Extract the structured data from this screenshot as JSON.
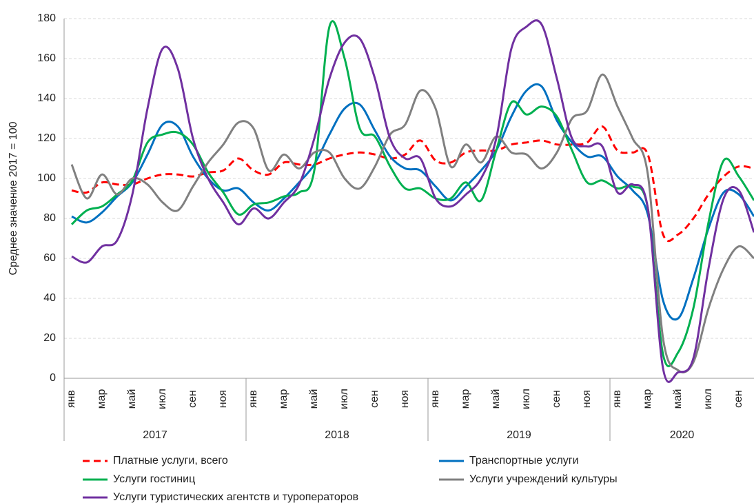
{
  "chart_data": {
    "type": "line",
    "y_label": "Среднее значение 2017 = 100",
    "categories": [
      "янв",
      null,
      "мар",
      null,
      "май",
      null,
      "июл",
      null,
      "сен",
      null,
      "ноя",
      null,
      "янв",
      null,
      "мар",
      null,
      "май",
      null,
      "июл",
      null,
      "сен",
      null,
      "ноя",
      null,
      "янв",
      null,
      "мар",
      null,
      "май",
      null,
      "июл",
      null,
      "сен",
      null,
      "ноя",
      null,
      "янв",
      null,
      "мар",
      null,
      "май",
      null,
      "июл",
      null,
      "сен",
      null
    ],
    "years": [
      "2017",
      "2018",
      "2019",
      "2020"
    ],
    "ylim": [
      0,
      180
    ],
    "yticks": [
      0,
      20,
      40,
      60,
      80,
      100,
      120,
      140,
      160,
      180
    ],
    "grid": true,
    "series": [
      {
        "name": "Платные услуги, всего",
        "color": "#ff0000",
        "dashed": true,
        "values": [
          94,
          93,
          98,
          97,
          97,
          100,
          102,
          102,
          101,
          103,
          104,
          110,
          104,
          102,
          108,
          107,
          107,
          110,
          112,
          113,
          112,
          110,
          112,
          119,
          109,
          108,
          113,
          114,
          114,
          117,
          118,
          119,
          117,
          117,
          118,
          126,
          114,
          113,
          112,
          72,
          72,
          80,
          92,
          101,
          106,
          105
        ]
      },
      {
        "name": "Транспортные услуги",
        "color": "#0070c0",
        "values": [
          81,
          78,
          83,
          91,
          98,
          112,
          127,
          126,
          111,
          100,
          94,
          95,
          88,
          84,
          90,
          98,
          107,
          122,
          135,
          137,
          124,
          111,
          105,
          104,
          96,
          89,
          96,
          104,
          114,
          131,
          144,
          146,
          129,
          118,
          111,
          111,
          101,
          94,
          82,
          39,
          30,
          50,
          75,
          93,
          92,
          81
        ]
      },
      {
        "name": "Услуги гостиниц",
        "color": "#00b050",
        "values": [
          77,
          84,
          86,
          92,
          99,
          118,
          122,
          123,
          117,
          103,
          93,
          82,
          87,
          88,
          91,
          93,
          104,
          176,
          160,
          125,
          121,
          106,
          95,
          95,
          90,
          90,
          98,
          89,
          114,
          138,
          132,
          136,
          131,
          114,
          98,
          99,
          95,
          96,
          85,
          12,
          13,
          35,
          78,
          109,
          101,
          89
        ]
      },
      {
        "name": "Услуги учреждений культуры",
        "color": "#808080",
        "values": [
          107,
          90,
          102,
          92,
          100,
          97,
          88,
          84,
          96,
          108,
          117,
          128,
          125,
          104,
          112,
          105,
          113,
          113,
          100,
          95,
          106,
          122,
          127,
          144,
          135,
          106,
          117,
          108,
          121,
          113,
          112,
          105,
          113,
          130,
          134,
          152,
          136,
          120,
          102,
          20,
          4,
          8,
          35,
          55,
          66,
          60
        ]
      },
      {
        "name": "Услуги туристических агентств и туроператоров",
        "color": "#7030a0",
        "values": [
          61,
          58,
          66,
          69,
          92,
          135,
          165,
          155,
          120,
          100,
          88,
          77,
          85,
          80,
          88,
          97,
          120,
          150,
          168,
          170,
          150,
          120,
          110,
          110,
          90,
          86,
          92,
          100,
          120,
          165,
          176,
          177,
          150,
          120,
          116,
          116,
          93,
          97,
          85,
          5,
          3,
          10,
          55,
          90,
          94,
          73
        ]
      }
    ]
  }
}
